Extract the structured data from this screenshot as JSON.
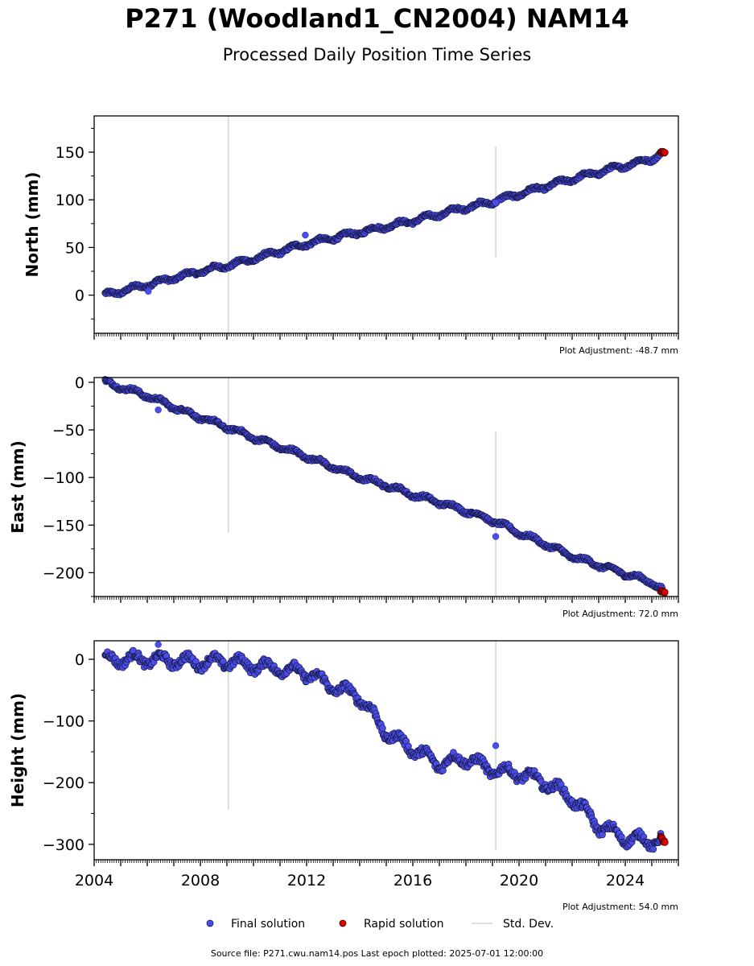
{
  "figure": {
    "title": "P271 (Woodland1_CN2004) NAM14",
    "subtitle": "Processed Daily Position Time Series",
    "footer": "Source file: P271.cwu.nam14.pos  Last epoch plotted: 2025-07-01 12:00:00"
  },
  "legend": {
    "final": "Final solution",
    "rapid": "Rapid solution",
    "std": "Std. Dev."
  },
  "colors": {
    "final": "#4a4de6",
    "rapid": "#e00000",
    "std": "#d4d4d4",
    "marker_edge": "#111133"
  },
  "chart_data": [
    {
      "type": "scatter",
      "ylabel": "North (mm)",
      "adjustment": "Plot Adjustment: -48.7 mm",
      "xlim": [
        "2004-01-01",
        "2026-01-01"
      ],
      "ylim": [
        -40,
        188
      ],
      "yticks": [
        0,
        50,
        100,
        150
      ],
      "std_dev_bars": [
        {
          "x": "2009-01-20",
          "y_range": [
            -40,
            188
          ]
        },
        {
          "x": "2019-02-15",
          "y_range": [
            40,
            156
          ]
        }
      ],
      "final_series": {
        "name": "Final solution",
        "x": [
          "2004-06-01",
          "2005-01-01",
          "2006-01-01",
          "2007-01-01",
          "2008-01-01",
          "2009-01-01",
          "2010-01-01",
          "2011-01-01",
          "2012-01-01",
          "2013-01-01",
          "2014-01-01",
          "2015-01-01",
          "2016-01-01",
          "2017-01-01",
          "2018-01-01",
          "2019-01-01",
          "2020-01-01",
          "2021-01-01",
          "2022-01-01",
          "2023-01-01",
          "2024-01-01",
          "2025-01-01",
          "2025-06-01"
        ],
        "y": [
          0,
          4,
          11,
          18,
          25,
          31,
          38,
          46,
          54,
          60,
          66,
          72,
          78,
          85,
          92,
          98,
          106,
          114,
          122,
          129,
          136,
          143,
          149
        ]
      },
      "outliers": [
        {
          "x": "2006-01-15",
          "y": 4
        },
        {
          "x": "2011-12-15",
          "y": 63
        },
        {
          "x": "2019-02-15",
          "y": 97
        }
      ],
      "rapid_series": {
        "name": "Rapid solution",
        "x": [
          "2025-05-01",
          "2025-07-01"
        ],
        "y": [
          150,
          150
        ]
      }
    },
    {
      "type": "scatter",
      "ylabel": "East (mm)",
      "adjustment": "Plot Adjustment: 72.0 mm",
      "xlim": [
        "2004-01-01",
        "2026-01-01"
      ],
      "ylim": [
        -225,
        5
      ],
      "yticks": [
        0,
        -50,
        -100,
        -150,
        -200
      ],
      "std_dev_bars": [
        {
          "x": "2009-01-20",
          "y_range": [
            -158,
            5
          ]
        },
        {
          "x": "2019-02-15",
          "y_range": [
            -225,
            -52
          ]
        }
      ],
      "final_series": {
        "name": "Final solution",
        "x": [
          "2004-06-01",
          "2005-01-01",
          "2006-01-01",
          "2007-01-01",
          "2008-01-01",
          "2009-01-01",
          "2010-01-01",
          "2011-01-01",
          "2012-01-01",
          "2013-01-01",
          "2014-01-01",
          "2015-01-01",
          "2016-01-01",
          "2017-01-01",
          "2018-01-01",
          "2019-01-01",
          "2020-01-01",
          "2021-01-01",
          "2022-01-01",
          "2023-01-01",
          "2024-01-01",
          "2025-01-01",
          "2025-06-01"
        ],
        "y": [
          0,
          -5,
          -14,
          -26,
          -37,
          -47,
          -58,
          -68,
          -78,
          -89,
          -100,
          -108,
          -118,
          -126,
          -135,
          -145,
          -158,
          -170,
          -183,
          -192,
          -201,
          -210,
          -218
        ]
      },
      "outliers": [
        {
          "x": "2006-06-01",
          "y": -29
        },
        {
          "x": "2019-02-15",
          "y": -162
        }
      ],
      "rapid_series": {
        "name": "Rapid solution",
        "x": [
          "2025-05-01",
          "2025-07-01"
        ],
        "y": [
          -219,
          -221
        ]
      }
    },
    {
      "type": "scatter",
      "ylabel": "Height (mm)",
      "adjustment": "Plot Adjustment: 54.0 mm",
      "xlim": [
        "2004-01-01",
        "2026-01-01"
      ],
      "ylim": [
        -325,
        30
      ],
      "yticks": [
        0,
        -100,
        -200,
        -300
      ],
      "xticks": [
        "2004",
        "2008",
        "2012",
        "2016",
        "2020",
        "2024"
      ],
      "std_dev_bars": [
        {
          "x": "2009-01-20",
          "y_range": [
            -244,
            30
          ]
        },
        {
          "x": "2019-02-15",
          "y_range": [
            -310,
            30
          ]
        }
      ],
      "final_series": {
        "name": "Final solution",
        "x": [
          "2004-06-01",
          "2005-01-01",
          "2006-01-01",
          "2007-01-01",
          "2008-01-01",
          "2009-01-01",
          "2010-01-01",
          "2011-01-01",
          "2012-01-01",
          "2013-01-01",
          "2014-01-01",
          "2015-01-01",
          "2016-01-01",
          "2017-01-01",
          "2018-01-01",
          "2019-01-01",
          "2020-01-01",
          "2021-01-01",
          "2022-01-01",
          "2023-01-01",
          "2024-01-01",
          "2025-01-01",
          "2025-06-01"
        ],
        "y": [
          0,
          0,
          0,
          -2,
          -5,
          -3,
          -10,
          -15,
          -22,
          -45,
          -60,
          -120,
          -145,
          -170,
          -160,
          -180,
          -185,
          -200,
          -225,
          -270,
          -290,
          -295,
          -292
        ]
      },
      "outliers": [
        {
          "x": "2006-06-01",
          "y": 24
        },
        {
          "x": "2019-02-15",
          "y": -140
        }
      ],
      "rapid_series": {
        "name": "Rapid solution",
        "x": [
          "2025-05-01",
          "2025-07-01"
        ],
        "y": [
          -288,
          -298
        ]
      }
    }
  ]
}
